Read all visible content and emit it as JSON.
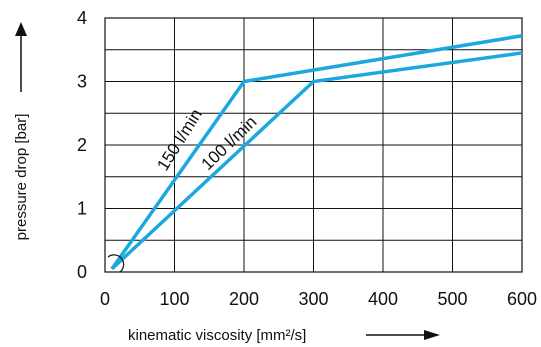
{
  "chart_data": {
    "type": "line",
    "xlabel": "kinematic viscosity [mm²/s]",
    "ylabel": "pressure drop [bar]",
    "xlim": [
      0,
      600
    ],
    "ylim": [
      0,
      4
    ],
    "x_ticks": [
      0,
      100,
      200,
      300,
      400,
      500,
      600
    ],
    "y_ticks": [
      0,
      1,
      2,
      3,
      4
    ],
    "grid": true,
    "series": [
      {
        "name": "150 l/min",
        "x": [
          10,
          200,
          600
        ],
        "y": [
          0.05,
          3.0,
          3.72
        ]
      },
      {
        "name": "100 l/min",
        "x": [
          10,
          300,
          600
        ],
        "y": [
          0.05,
          3.0,
          3.45
        ]
      }
    ],
    "colors": {
      "series": "#1aa8de",
      "grid": "#111111",
      "text": "#111111"
    }
  }
}
